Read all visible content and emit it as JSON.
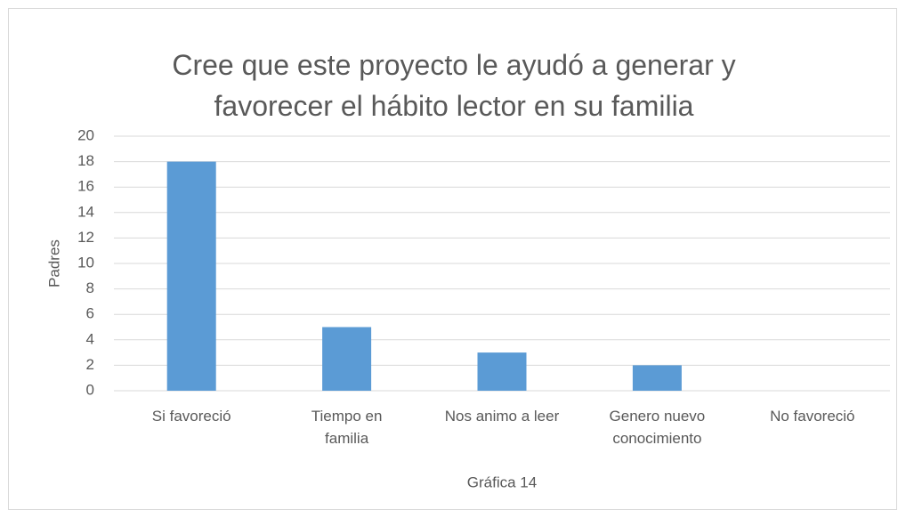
{
  "chart_data": {
    "type": "bar",
    "title": "Cree que este proyecto le ayudó a generar y favorecer el hábito lector en su familia",
    "categories": [
      "Si favoreció",
      "Tiempo en familia",
      "Nos animo a leer",
      "Genero nuevo conocimiento",
      "No favoreció"
    ],
    "values": [
      18,
      5,
      3,
      2,
      0
    ],
    "color": "#5b9bd5",
    "y_label": "Padres",
    "x_label": "Gráfica 14",
    "ylim": [
      0,
      20
    ],
    "yticks": [
      0,
      2,
      4,
      6,
      8,
      10,
      12,
      14,
      16,
      18,
      20
    ],
    "grid": true
  }
}
